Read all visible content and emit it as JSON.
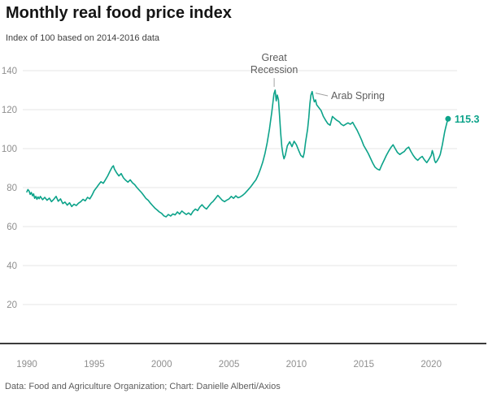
{
  "header": {
    "title": "Monthly real food price index",
    "subtitle": "Index of 100 based on 2014-2016 data"
  },
  "footer": {
    "source": "Data: Food and Agriculture Organization; Chart: Danielle Alberti/Axios"
  },
  "colors": {
    "line": "#0da38a",
    "accent_text": "#0da38a",
    "grid": "#e4e4e4",
    "axis": "#3c3c3c",
    "tick_text": "#8f8f8f",
    "annotation_text": "#5d5d5d",
    "pointer": "#a3a3a3"
  },
  "chart_data": {
    "type": "line",
    "title": "Monthly real food price index",
    "subtitle": "Index of 100 based on 2014-2016 data",
    "xlabel": "",
    "ylabel": "",
    "grid": "horizontal",
    "legend": "none",
    "xlim": [
      1990,
      2021.8
    ],
    "ylim": [
      0,
      140
    ],
    "x_ticks": [
      1990,
      1995,
      2000,
      2005,
      2010,
      2015,
      2020
    ],
    "y_ticks": [
      20,
      40,
      60,
      80,
      100,
      120,
      140
    ],
    "end_label": {
      "text": "115.3",
      "value": 115.3
    },
    "annotations": [
      {
        "name": "great-recession",
        "lines": [
          "Great",
          "Recession"
        ],
        "x": 2008.35,
        "y": 145,
        "align": "middle",
        "pointer": [
          [
            2008.35,
            136.2
          ],
          [
            2008.35,
            131.7
          ]
        ]
      },
      {
        "name": "arab-spring",
        "lines": [
          "Arab Spring"
        ],
        "x": 2012.57,
        "y": 125.4,
        "align": "start",
        "pointer": [
          [
            2012.33,
            127.1
          ],
          [
            2011.42,
            128.5
          ]
        ]
      }
    ],
    "series": [
      {
        "name": "Real food price index",
        "points": [
          [
            1990.0,
            77.8
          ],
          [
            1990.08,
            79.0
          ],
          [
            1990.17,
            78.2
          ],
          [
            1990.25,
            76.5
          ],
          [
            1990.33,
            77.5
          ],
          [
            1990.42,
            75.8
          ],
          [
            1990.5,
            76.8
          ],
          [
            1990.58,
            74.5
          ],
          [
            1990.67,
            75.5
          ],
          [
            1990.75,
            74.0
          ],
          [
            1990.83,
            75.2
          ],
          [
            1990.92,
            74.3
          ],
          [
            1991.0,
            75.5
          ],
          [
            1991.17,
            73.8
          ],
          [
            1991.33,
            75.0
          ],
          [
            1991.5,
            73.5
          ],
          [
            1991.67,
            74.6
          ],
          [
            1991.83,
            72.8
          ],
          [
            1992.0,
            74.0
          ],
          [
            1992.17,
            75.5
          ],
          [
            1992.33,
            73.0
          ],
          [
            1992.5,
            74.2
          ],
          [
            1992.67,
            71.8
          ],
          [
            1992.83,
            72.6
          ],
          [
            1993.0,
            71.0
          ],
          [
            1993.17,
            72.2
          ],
          [
            1993.33,
            70.3
          ],
          [
            1993.5,
            71.5
          ],
          [
            1993.67,
            70.8
          ],
          [
            1993.83,
            72.0
          ],
          [
            1994.0,
            72.8
          ],
          [
            1994.17,
            74.0
          ],
          [
            1994.33,
            73.2
          ],
          [
            1994.5,
            75.0
          ],
          [
            1994.67,
            74.2
          ],
          [
            1994.83,
            76.0
          ],
          [
            1995.0,
            78.5
          ],
          [
            1995.17,
            80.0
          ],
          [
            1995.33,
            81.5
          ],
          [
            1995.5,
            83.0
          ],
          [
            1995.67,
            82.2
          ],
          [
            1995.83,
            84.0
          ],
          [
            1996.0,
            86.0
          ],
          [
            1996.17,
            88.5
          ],
          [
            1996.33,
            90.5
          ],
          [
            1996.42,
            91.2
          ],
          [
            1996.5,
            89.5
          ],
          [
            1996.67,
            87.5
          ],
          [
            1996.83,
            86.0
          ],
          [
            1997.0,
            87.2
          ],
          [
            1997.17,
            85.0
          ],
          [
            1997.33,
            83.8
          ],
          [
            1997.5,
            82.8
          ],
          [
            1997.67,
            84.0
          ],
          [
            1997.83,
            82.5
          ],
          [
            1998.0,
            81.5
          ],
          [
            1998.17,
            80.0
          ],
          [
            1998.33,
            78.8
          ],
          [
            1998.5,
            77.5
          ],
          [
            1998.67,
            76.0
          ],
          [
            1998.83,
            74.5
          ],
          [
            1999.0,
            73.5
          ],
          [
            1999.17,
            72.0
          ],
          [
            1999.33,
            70.8
          ],
          [
            1999.5,
            69.5
          ],
          [
            1999.67,
            68.5
          ],
          [
            1999.83,
            67.5
          ],
          [
            2000.0,
            66.8
          ],
          [
            2000.17,
            65.5
          ],
          [
            2000.33,
            65.0
          ],
          [
            2000.5,
            66.2
          ],
          [
            2000.67,
            65.4
          ],
          [
            2000.83,
            66.5
          ],
          [
            2001.0,
            66.0
          ],
          [
            2001.17,
            67.5
          ],
          [
            2001.33,
            66.4
          ],
          [
            2001.5,
            68.0
          ],
          [
            2001.67,
            67.0
          ],
          [
            2001.83,
            66.2
          ],
          [
            2002.0,
            67.0
          ],
          [
            2002.17,
            66.0
          ],
          [
            2002.33,
            67.8
          ],
          [
            2002.5,
            69.0
          ],
          [
            2002.67,
            68.2
          ],
          [
            2002.83,
            70.0
          ],
          [
            2003.0,
            71.2
          ],
          [
            2003.17,
            69.8
          ],
          [
            2003.33,
            69.0
          ],
          [
            2003.5,
            70.5
          ],
          [
            2003.67,
            72.0
          ],
          [
            2003.83,
            73.0
          ],
          [
            2004.0,
            74.5
          ],
          [
            2004.17,
            76.0
          ],
          [
            2004.33,
            74.8
          ],
          [
            2004.5,
            73.5
          ],
          [
            2004.67,
            72.8
          ],
          [
            2004.83,
            73.6
          ],
          [
            2005.0,
            74.2
          ],
          [
            2005.17,
            75.5
          ],
          [
            2005.33,
            74.5
          ],
          [
            2005.5,
            75.8
          ],
          [
            2005.67,
            74.8
          ],
          [
            2005.83,
            75.2
          ],
          [
            2006.0,
            76.0
          ],
          [
            2006.17,
            77.0
          ],
          [
            2006.33,
            78.2
          ],
          [
            2006.5,
            79.5
          ],
          [
            2006.67,
            81.0
          ],
          [
            2006.83,
            82.5
          ],
          [
            2007.0,
            84.0
          ],
          [
            2007.17,
            86.5
          ],
          [
            2007.33,
            89.5
          ],
          [
            2007.5,
            93.0
          ],
          [
            2007.67,
            97.5
          ],
          [
            2007.83,
            103.0
          ],
          [
            2008.0,
            110.0
          ],
          [
            2008.08,
            114.0
          ],
          [
            2008.17,
            118.5
          ],
          [
            2008.25,
            123.0
          ],
          [
            2008.33,
            128.0
          ],
          [
            2008.42,
            130.0
          ],
          [
            2008.5,
            124.5
          ],
          [
            2008.58,
            127.5
          ],
          [
            2008.67,
            125.0
          ],
          [
            2008.75,
            117.0
          ],
          [
            2008.83,
            108.0
          ],
          [
            2008.92,
            101.0
          ],
          [
            2009.0,
            97.0
          ],
          [
            2009.08,
            94.8
          ],
          [
            2009.17,
            96.5
          ],
          [
            2009.25,
            99.0
          ],
          [
            2009.33,
            101.5
          ],
          [
            2009.5,
            103.5
          ],
          [
            2009.67,
            101.0
          ],
          [
            2009.83,
            103.8
          ],
          [
            2010.0,
            102.0
          ],
          [
            2010.17,
            99.0
          ],
          [
            2010.33,
            96.5
          ],
          [
            2010.5,
            95.5
          ],
          [
            2010.58,
            98.0
          ],
          [
            2010.67,
            103.0
          ],
          [
            2010.83,
            110.0
          ],
          [
            2010.92,
            116.0
          ],
          [
            2011.0,
            123.0
          ],
          [
            2011.08,
            127.5
          ],
          [
            2011.17,
            129.3
          ],
          [
            2011.25,
            126.0
          ],
          [
            2011.33,
            124.0
          ],
          [
            2011.42,
            125.0
          ],
          [
            2011.5,
            122.5
          ],
          [
            2011.67,
            121.0
          ],
          [
            2011.83,
            119.5
          ],
          [
            2012.0,
            116.5
          ],
          [
            2012.17,
            114.5
          ],
          [
            2012.33,
            112.8
          ],
          [
            2012.5,
            112.0
          ],
          [
            2012.67,
            116.5
          ],
          [
            2012.83,
            115.5
          ],
          [
            2013.0,
            114.5
          ],
          [
            2013.17,
            113.8
          ],
          [
            2013.33,
            112.5
          ],
          [
            2013.5,
            111.8
          ],
          [
            2013.67,
            112.6
          ],
          [
            2013.83,
            113.2
          ],
          [
            2014.0,
            112.5
          ],
          [
            2014.17,
            113.5
          ],
          [
            2014.33,
            111.5
          ],
          [
            2014.5,
            109.5
          ],
          [
            2014.67,
            107.0
          ],
          [
            2014.83,
            104.5
          ],
          [
            2015.0,
            101.5
          ],
          [
            2015.17,
            99.5
          ],
          [
            2015.33,
            97.5
          ],
          [
            2015.5,
            95.0
          ],
          [
            2015.67,
            92.5
          ],
          [
            2015.83,
            90.5
          ],
          [
            2016.0,
            89.5
          ],
          [
            2016.17,
            89.0
          ],
          [
            2016.33,
            91.5
          ],
          [
            2016.5,
            94.0
          ],
          [
            2016.67,
            96.5
          ],
          [
            2016.83,
            98.5
          ],
          [
            2017.0,
            100.5
          ],
          [
            2017.17,
            102.0
          ],
          [
            2017.33,
            100.0
          ],
          [
            2017.5,
            98.0
          ],
          [
            2017.67,
            97.0
          ],
          [
            2017.83,
            97.8
          ],
          [
            2018.0,
            98.5
          ],
          [
            2018.17,
            100.0
          ],
          [
            2018.33,
            100.8
          ],
          [
            2018.5,
            98.5
          ],
          [
            2018.67,
            96.5
          ],
          [
            2018.83,
            95.0
          ],
          [
            2019.0,
            94.0
          ],
          [
            2019.17,
            95.2
          ],
          [
            2019.33,
            96.0
          ],
          [
            2019.5,
            94.2
          ],
          [
            2019.67,
            92.8
          ],
          [
            2019.83,
            94.5
          ],
          [
            2020.0,
            96.5
          ],
          [
            2020.08,
            99.0
          ],
          [
            2020.17,
            97.0
          ],
          [
            2020.25,
            94.0
          ],
          [
            2020.33,
            92.8
          ],
          [
            2020.42,
            93.5
          ],
          [
            2020.5,
            94.5
          ],
          [
            2020.58,
            95.5
          ],
          [
            2020.67,
            97.0
          ],
          [
            2020.75,
            99.5
          ],
          [
            2020.83,
            102.0
          ],
          [
            2020.92,
            105.5
          ],
          [
            2021.0,
            108.5
          ],
          [
            2021.08,
            111.0
          ],
          [
            2021.17,
            113.5
          ],
          [
            2021.25,
            115.3
          ]
        ]
      }
    ]
  }
}
